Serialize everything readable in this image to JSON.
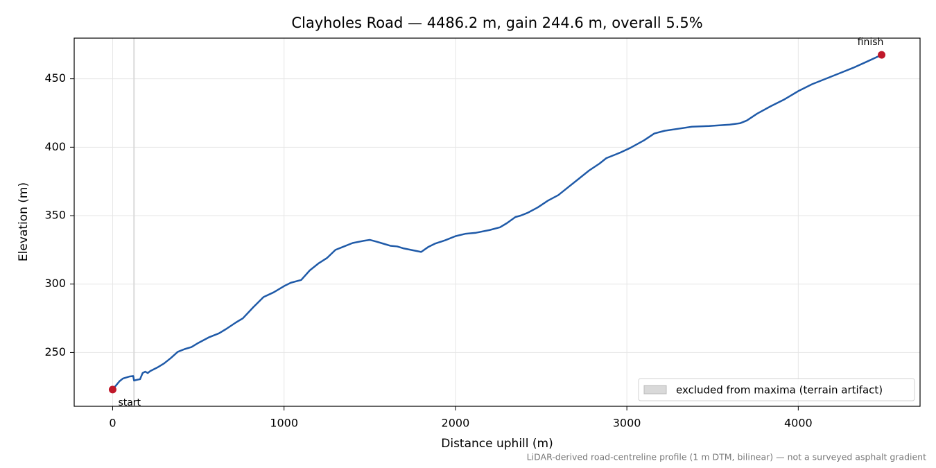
{
  "chart_data": {
    "type": "line",
    "title": "Clayholes Road — 4486.2 m, gain 244.6 m, overall 5.5%",
    "xlabel": "Distance uphill (m)",
    "ylabel": "Elevation (m)",
    "footnote": "LiDAR-derived road-centreline profile (1 m DTM, bilinear) — not a surveyed asphalt gradient",
    "xlim": [
      -224.3,
      4710.5
    ],
    "ylim": [
      210.7,
      479.7
    ],
    "xticks": [
      0,
      1000,
      2000,
      3000,
      4000
    ],
    "yticks": [
      250,
      300,
      350,
      400,
      450
    ],
    "grid": true,
    "legend": "lower right",
    "x": [
      0,
      20,
      40,
      60,
      100,
      120,
      125,
      140,
      160,
      175,
      190,
      205,
      220,
      260,
      300,
      340,
      380,
      420,
      460,
      500,
      560,
      620,
      660,
      720,
      760,
      820,
      880,
      940,
      1000,
      1040,
      1100,
      1150,
      1200,
      1250,
      1300,
      1340,
      1400,
      1460,
      1500,
      1540,
      1580,
      1620,
      1660,
      1700,
      1760,
      1800,
      1840,
      1880,
      1940,
      2000,
      2060,
      2120,
      2200,
      2260,
      2300,
      2350,
      2380,
      2420,
      2480,
      2540,
      2600,
      2660,
      2720,
      2780,
      2840,
      2880,
      2960,
      3020,
      3100,
      3160,
      3220,
      3300,
      3380,
      3480,
      3600,
      3660,
      3700,
      3760,
      3840,
      3920,
      4000,
      4080,
      4160,
      4240,
      4320,
      4400,
      4486.2
    ],
    "series": [
      {
        "name": "elevation",
        "color": "#1f5aa8",
        "values": [
          222.9,
          226,
          229,
          231,
          232.5,
          232.8,
          229.5,
          230,
          230.5,
          235,
          236,
          235,
          236.5,
          239,
          242,
          246,
          250.5,
          252.5,
          254,
          257,
          261,
          264,
          267,
          272,
          275,
          283,
          290.5,
          294,
          298.5,
          301,
          303,
          310,
          315,
          319,
          325,
          327,
          330,
          331.5,
          332.3,
          331,
          329.5,
          328,
          327.5,
          326,
          324.5,
          323.5,
          327,
          329.5,
          332,
          335,
          336.8,
          337.5,
          339.5,
          341.5,
          344.5,
          349,
          350,
          352,
          356,
          361,
          365,
          371,
          377,
          383,
          388,
          392,
          396,
          399.5,
          405,
          410,
          412,
          413.5,
          415,
          415.5,
          416.5,
          417.5,
          419.5,
          424.5,
          430,
          435,
          441,
          446,
          450,
          454,
          458,
          462.5,
          467.5
        ]
      }
    ],
    "markers": [
      {
        "label": "start",
        "x": 0,
        "y": 222.9,
        "color": "#c0182a"
      },
      {
        "label": "finish",
        "x": 4486.2,
        "y": 467.5,
        "color": "#c0182a"
      }
    ],
    "excluded": {
      "label": "excluded from maxima (terrain artifact)",
      "range": [
        120,
        130
      ],
      "color": "#d9d9d9"
    }
  }
}
